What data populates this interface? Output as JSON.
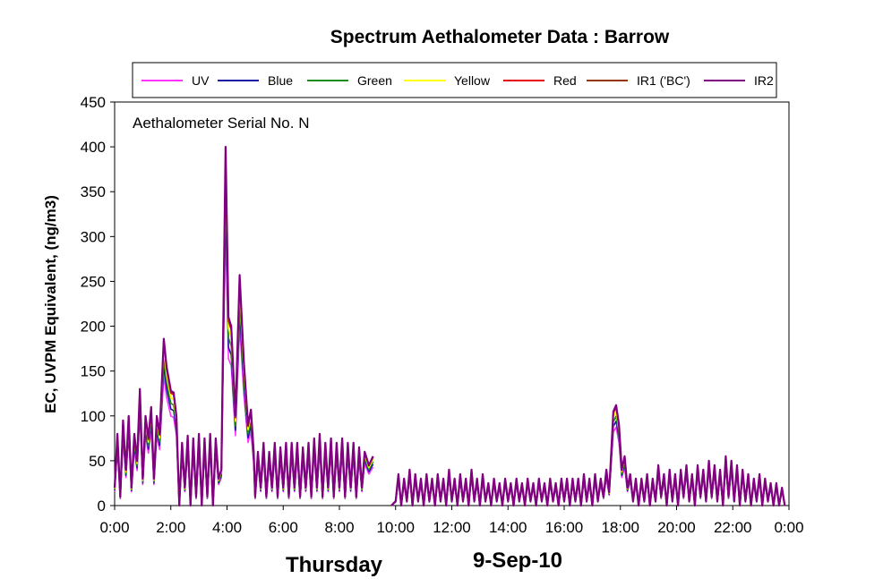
{
  "chart_data": {
    "type": "line",
    "title": "Spectrum Aethalometer Data  :  Barrow",
    "annotation": "Aethalometer  Serial No. N",
    "ylabel": "EC, UVPM Equivalent,  (ng/m3)",
    "xlabel_left": "Thursday",
    "xlabel_right": "9-Sep-10",
    "ylim": [
      0,
      450
    ],
    "xlim": [
      0,
      24
    ],
    "y_ticks": [
      "0",
      "50",
      "100",
      "150",
      "200",
      "250",
      "300",
      "350",
      "400",
      "450"
    ],
    "x_ticks": [
      "0:00",
      "2:00",
      "4:00",
      "6:00",
      "8:00",
      "10:00",
      "12:00",
      "14:00",
      "16:00",
      "18:00",
      "20:00",
      "22:00",
      "0:00"
    ],
    "legend_position": "top",
    "grid": false,
    "x_unit": "hours",
    "series": [
      {
        "name": "UV",
        "color": "#ff33ff",
        "scale": 0.78
      },
      {
        "name": "Blue",
        "color": "#1a1aa6",
        "scale": 0.84
      },
      {
        "name": "Green",
        "color": "#1a8a1a",
        "scale": 0.89
      },
      {
        "name": "Yellow",
        "color": "#ffff00",
        "scale": 0.94
      },
      {
        "name": "Red",
        "color": "#e6000a",
        "scale": 0.98
      },
      {
        "name": "IR1 ('BC')",
        "color": "#993300",
        "scale": 0.99
      },
      {
        "name": "IR2",
        "color": "#800080",
        "scale": 1.0
      }
    ],
    "reference_series_points": [
      [
        0.0,
        20
      ],
      [
        0.1,
        80
      ],
      [
        0.2,
        10
      ],
      [
        0.3,
        95
      ],
      [
        0.4,
        40
      ],
      [
        0.5,
        100
      ],
      [
        0.6,
        20
      ],
      [
        0.7,
        80
      ],
      [
        0.8,
        50
      ],
      [
        0.9,
        130
      ],
      [
        1.0,
        30
      ],
      [
        1.1,
        100
      ],
      [
        1.2,
        75
      ],
      [
        1.3,
        110
      ],
      [
        1.4,
        30
      ],
      [
        1.5,
        100
      ],
      [
        1.6,
        80
      ],
      [
        1.75,
        186
      ],
      [
        1.85,
        155
      ],
      [
        2.0,
        128
      ],
      [
        2.1,
        126
      ],
      [
        2.2,
        100
      ],
      [
        2.3,
        0
      ],
      [
        2.4,
        70
      ],
      [
        2.5,
        20
      ],
      [
        2.6,
        78
      ],
      [
        2.7,
        0
      ],
      [
        2.8,
        75
      ],
      [
        2.9,
        10
      ],
      [
        3.0,
        80
      ],
      [
        3.1,
        0
      ],
      [
        3.2,
        75
      ],
      [
        3.3,
        10
      ],
      [
        3.4,
        80
      ],
      [
        3.5,
        0
      ],
      [
        3.6,
        75
      ],
      [
        3.7,
        30
      ],
      [
        3.8,
        40
      ],
      [
        3.95,
        400
      ],
      [
        4.05,
        210
      ],
      [
        4.15,
        200
      ],
      [
        4.3,
        100
      ],
      [
        4.45,
        257
      ],
      [
        4.6,
        160
      ],
      [
        4.75,
        90
      ],
      [
        4.85,
        107
      ],
      [
        4.95,
        60
      ],
      [
        5.0,
        10
      ],
      [
        5.1,
        60
      ],
      [
        5.2,
        20
      ],
      [
        5.3,
        70
      ],
      [
        5.4,
        10
      ],
      [
        5.5,
        60
      ],
      [
        5.6,
        20
      ],
      [
        5.7,
        70
      ],
      [
        5.8,
        10
      ],
      [
        5.9,
        65
      ],
      [
        6.0,
        20
      ],
      [
        6.1,
        70
      ],
      [
        6.2,
        10
      ],
      [
        6.3,
        70
      ],
      [
        6.4,
        20
      ],
      [
        6.5,
        70
      ],
      [
        6.6,
        10
      ],
      [
        6.7,
        65
      ],
      [
        6.8,
        20
      ],
      [
        6.9,
        70
      ],
      [
        7.0,
        10
      ],
      [
        7.1,
        75
      ],
      [
        7.2,
        20
      ],
      [
        7.3,
        80
      ],
      [
        7.4,
        10
      ],
      [
        7.5,
        70
      ],
      [
        7.6,
        20
      ],
      [
        7.7,
        75
      ],
      [
        7.8,
        10
      ],
      [
        7.9,
        70
      ],
      [
        8.0,
        20
      ],
      [
        8.1,
        75
      ],
      [
        8.2,
        10
      ],
      [
        8.3,
        70
      ],
      [
        8.4,
        20
      ],
      [
        8.5,
        70
      ],
      [
        8.6,
        10
      ],
      [
        8.7,
        65
      ],
      [
        8.8,
        20
      ],
      [
        8.9,
        60
      ],
      [
        9.05,
        45
      ],
      [
        9.2,
        55
      ],
      null,
      [
        9.85,
        0
      ],
      [
        10.0,
        5
      ],
      [
        10.1,
        35
      ],
      [
        10.2,
        0
      ],
      [
        10.3,
        30
      ],
      [
        10.4,
        5
      ],
      [
        10.5,
        40
      ],
      [
        10.6,
        0
      ],
      [
        10.7,
        35
      ],
      [
        10.8,
        5
      ],
      [
        10.9,
        30
      ],
      [
        11.0,
        0
      ],
      [
        11.1,
        35
      ],
      [
        11.2,
        5
      ],
      [
        11.3,
        30
      ],
      [
        11.4,
        0
      ],
      [
        11.5,
        35
      ],
      [
        11.6,
        5
      ],
      [
        11.7,
        30
      ],
      [
        11.8,
        0
      ],
      [
        11.9,
        40
      ],
      [
        12.0,
        5
      ],
      [
        12.1,
        30
      ],
      [
        12.2,
        0
      ],
      [
        12.3,
        35
      ],
      [
        12.4,
        5
      ],
      [
        12.5,
        30
      ],
      [
        12.6,
        0
      ],
      [
        12.7,
        40
      ],
      [
        12.8,
        5
      ],
      [
        12.9,
        30
      ],
      [
        13.0,
        0
      ],
      [
        13.1,
        35
      ],
      [
        13.2,
        5
      ],
      [
        13.3,
        25
      ],
      [
        13.4,
        0
      ],
      [
        13.5,
        30
      ],
      [
        13.6,
        5
      ],
      [
        13.7,
        25
      ],
      [
        13.8,
        0
      ],
      [
        13.9,
        30
      ],
      [
        14.0,
        5
      ],
      [
        14.1,
        25
      ],
      [
        14.2,
        0
      ],
      [
        14.3,
        30
      ],
      [
        14.4,
        5
      ],
      [
        14.5,
        25
      ],
      [
        14.6,
        0
      ],
      [
        14.7,
        30
      ],
      [
        14.8,
        5
      ],
      [
        14.9,
        25
      ],
      [
        15.0,
        0
      ],
      [
        15.1,
        30
      ],
      [
        15.2,
        5
      ],
      [
        15.3,
        25
      ],
      [
        15.4,
        0
      ],
      [
        15.5,
        30
      ],
      [
        15.6,
        5
      ],
      [
        15.7,
        25
      ],
      [
        15.8,
        0
      ],
      [
        15.9,
        30
      ],
      [
        16.0,
        5
      ],
      [
        16.1,
        30
      ],
      [
        16.2,
        0
      ],
      [
        16.3,
        30
      ],
      [
        16.4,
        5
      ],
      [
        16.5,
        30
      ],
      [
        16.6,
        0
      ],
      [
        16.7,
        35
      ],
      [
        16.8,
        5
      ],
      [
        16.9,
        30
      ],
      [
        17.0,
        0
      ],
      [
        17.1,
        35
      ],
      [
        17.2,
        5
      ],
      [
        17.3,
        30
      ],
      [
        17.4,
        10
      ],
      [
        17.5,
        40
      ],
      [
        17.6,
        15
      ],
      [
        17.75,
        105
      ],
      [
        17.85,
        112
      ],
      [
        17.95,
        90
      ],
      [
        18.05,
        40
      ],
      [
        18.15,
        55
      ],
      [
        18.25,
        20
      ],
      [
        18.35,
        35
      ],
      [
        18.45,
        5
      ],
      [
        18.55,
        30
      ],
      [
        18.65,
        0
      ],
      [
        18.75,
        30
      ],
      [
        18.85,
        5
      ],
      [
        18.95,
        35
      ],
      [
        19.05,
        0
      ],
      [
        19.15,
        30
      ],
      [
        19.25,
        5
      ],
      [
        19.35,
        45
      ],
      [
        19.45,
        10
      ],
      [
        19.55,
        35
      ],
      [
        19.65,
        0
      ],
      [
        19.75,
        40
      ],
      [
        19.85,
        5
      ],
      [
        19.95,
        35
      ],
      [
        20.05,
        0
      ],
      [
        20.15,
        40
      ],
      [
        20.25,
        10
      ],
      [
        20.35,
        45
      ],
      [
        20.45,
        5
      ],
      [
        20.55,
        35
      ],
      [
        20.65,
        0
      ],
      [
        20.75,
        45
      ],
      [
        20.85,
        10
      ],
      [
        20.95,
        40
      ],
      [
        21.05,
        5
      ],
      [
        21.15,
        50
      ],
      [
        21.25,
        10
      ],
      [
        21.35,
        45
      ],
      [
        21.45,
        5
      ],
      [
        21.55,
        40
      ],
      [
        21.65,
        0
      ],
      [
        21.75,
        55
      ],
      [
        21.85,
        10
      ],
      [
        21.95,
        50
      ],
      [
        22.05,
        5
      ],
      [
        22.15,
        45
      ],
      [
        22.25,
        0
      ],
      [
        22.35,
        40
      ],
      [
        22.45,
        5
      ],
      [
        22.55,
        35
      ],
      [
        22.65,
        0
      ],
      [
        22.75,
        30
      ],
      [
        22.85,
        5
      ],
      [
        22.95,
        35
      ],
      [
        23.05,
        0
      ],
      [
        23.15,
        30
      ],
      [
        23.25,
        5
      ],
      [
        23.35,
        25
      ],
      [
        23.45,
        0
      ],
      [
        23.55,
        25
      ],
      [
        23.65,
        0
      ],
      [
        23.75,
        20
      ],
      [
        23.85,
        0
      ]
    ]
  }
}
